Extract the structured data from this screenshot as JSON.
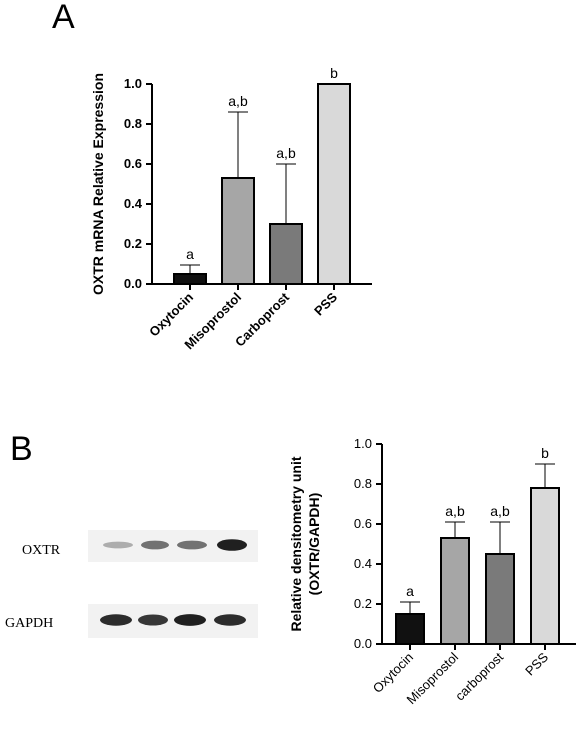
{
  "panels": {
    "a_letter": "A",
    "b_letter": "B"
  },
  "chart_data": [
    {
      "type": "bar",
      "panel": "A",
      "title": "",
      "xlabel": "",
      "ylabel": "OXTR mRNA Relative Expression",
      "categories": [
        "Oxytocin",
        "Misoprostol",
        "Carboprost",
        "PSS"
      ],
      "values": [
        0.05,
        0.53,
        0.3,
        1.0
      ],
      "error_upper": [
        0.095,
        0.86,
        0.6,
        1.0
      ],
      "significance": [
        "a",
        "a,b",
        "a,b",
        "b"
      ],
      "bar_colors": [
        "#111111",
        "#a6a6a6",
        "#7a7a7a",
        "#d9d9d9"
      ],
      "ylim": [
        0,
        1.0
      ],
      "yticks": [
        "0.0",
        "0.2",
        "0.4",
        "0.6",
        "0.8",
        "1.0"
      ],
      "grid": false
    },
    {
      "type": "bar",
      "panel": "B",
      "title": "",
      "xlabel": "",
      "ylabel": "Relative densitometry unit",
      "ylabel2": "(OXTR/GAPDH)",
      "categories": [
        "Oxytocin",
        "Misoprostol",
        "carboprost",
        "PSS"
      ],
      "values": [
        0.15,
        0.53,
        0.45,
        0.78
      ],
      "error_upper": [
        0.21,
        0.61,
        0.61,
        0.9
      ],
      "significance": [
        "a",
        "a,b",
        "a,b",
        "b"
      ],
      "bar_colors": [
        "#111111",
        "#a6a6a6",
        "#7a7a7a",
        "#d9d9d9"
      ],
      "ylim": [
        0,
        1.0
      ],
      "yticks": [
        "0.0",
        "0.2",
        "0.4",
        "0.6",
        "0.8",
        "1.0"
      ],
      "grid": false
    }
  ],
  "blot": {
    "row1_label": "OXTR",
    "row2_label": "GAPDH",
    "row1_band_strength": [
      0.35,
      0.6,
      0.6,
      0.95
    ],
    "row2_band_strength": [
      0.9,
      0.85,
      0.95,
      0.9
    ]
  }
}
